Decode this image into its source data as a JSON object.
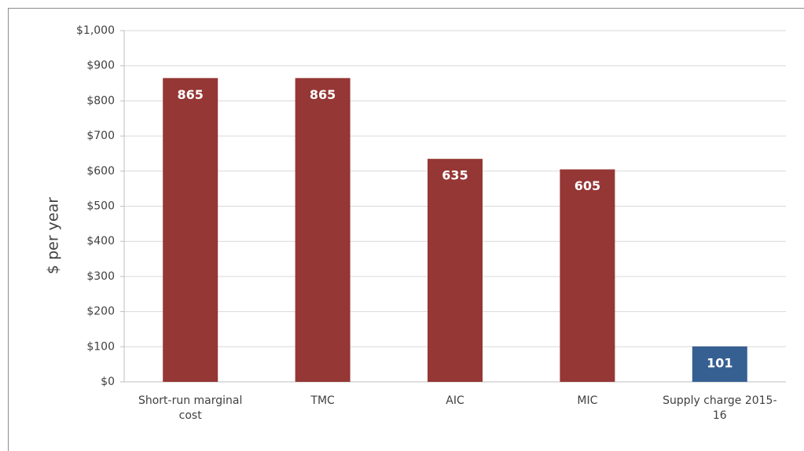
{
  "chart_data": {
    "type": "bar",
    "y_label": "$ per year",
    "categories": [
      "Short-run marginal cost",
      "TMC",
      "AIC",
      "MIC",
      "Supply charge 2015-16"
    ],
    "values": [
      865,
      865,
      635,
      605,
      101
    ],
    "colors": [
      "#953735",
      "#953735",
      "#953735",
      "#953735",
      "#376092"
    ],
    "ylim": [
      0,
      1000
    ],
    "yticks": [
      {
        "value": 0,
        "label": "$0"
      },
      {
        "value": 100,
        "label": "$100"
      },
      {
        "value": 200,
        "label": "$200"
      },
      {
        "value": 300,
        "label": "$300"
      },
      {
        "value": 400,
        "label": "$400"
      },
      {
        "value": 500,
        "label": "$500"
      },
      {
        "value": 600,
        "label": "$600"
      },
      {
        "value": 700,
        "label": "$700"
      },
      {
        "value": 800,
        "label": "$800"
      },
      {
        "value": 900,
        "label": "$900"
      },
      {
        "value": 1000,
        "label": "$1,000"
      }
    ],
    "grid": true
  }
}
